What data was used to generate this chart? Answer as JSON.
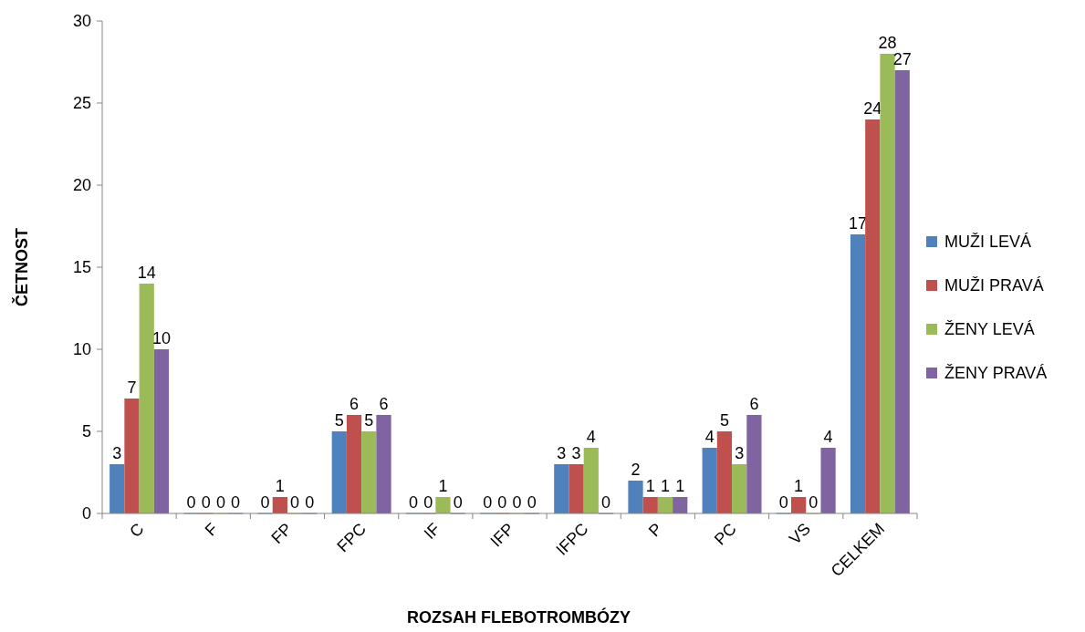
{
  "chart_data": {
    "type": "bar",
    "xlabel": "ROZSAH FLEBOTROMBÓZY",
    "ylabel": "ČETNOST",
    "categories": [
      "C",
      "F",
      "FP",
      "FPC",
      "IF",
      "IFP",
      "IFPC",
      "P",
      "PC",
      "VS",
      "CELKEM"
    ],
    "series": [
      {
        "name": "MUŽI LEVÁ",
        "color": "#4f81bd",
        "values": [
          3,
          0,
          0,
          5,
          0,
          0,
          3,
          2,
          4,
          0,
          17
        ]
      },
      {
        "name": "MUŽI PRAVÁ",
        "color": "#c0504d",
        "values": [
          7,
          0,
          1,
          6,
          0,
          0,
          3,
          1,
          5,
          1,
          24
        ]
      },
      {
        "name": "ŽENY LEVÁ",
        "color": "#9bbb59",
        "values": [
          14,
          0,
          0,
          5,
          1,
          0,
          4,
          1,
          3,
          0,
          28
        ]
      },
      {
        "name": "ŽENY PRAVÁ",
        "color": "#8064a2",
        "values": [
          10,
          0,
          0,
          6,
          0,
          0,
          0,
          1,
          6,
          4,
          27
        ]
      }
    ],
    "ylim": [
      0,
      30
    ],
    "yticks": [
      0,
      5,
      10,
      15,
      20,
      25,
      30
    ],
    "data_labels": true,
    "legend": "right",
    "grid": false
  }
}
